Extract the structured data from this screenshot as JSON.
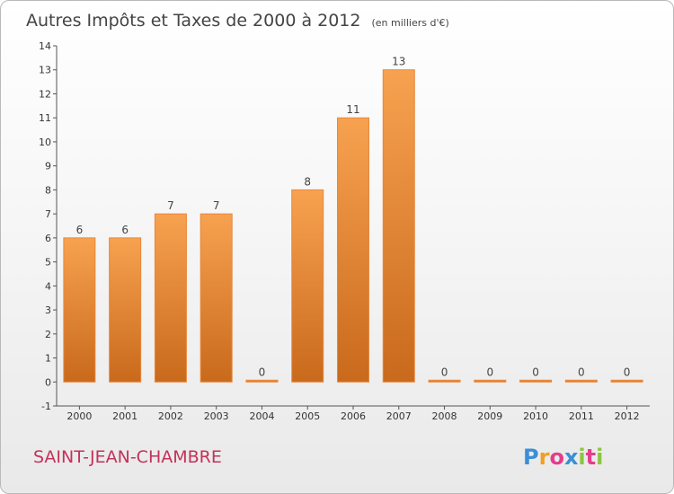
{
  "chart_data": {
    "type": "bar",
    "title": "Autres Impôts et Taxes de 2000 à 2012",
    "unit": "(en milliers d'€)",
    "categories": [
      "2000",
      "2001",
      "2002",
      "2003",
      "2004",
      "2005",
      "2006",
      "2007",
      "2008",
      "2009",
      "2010",
      "2011",
      "2012"
    ],
    "values": [
      6,
      6,
      7,
      7,
      0,
      8,
      11,
      13,
      0,
      0,
      0,
      0,
      0
    ],
    "ylim": [
      -1,
      14
    ],
    "yticks": [
      -1,
      0,
      1,
      2,
      3,
      4,
      5,
      6,
      7,
      8,
      9,
      10,
      11,
      12,
      13,
      14
    ],
    "grid": false,
    "bar_color": "#f0913a"
  },
  "footer": {
    "place": "SAINT-JEAN-CHAMBRE",
    "brand": "Proxiti",
    "brand_colors": [
      "#3a8fd6",
      "#f0a020",
      "#e43d8a",
      "#3a8fd6",
      "#8cc63f",
      "#e43d8a",
      "#8cc63f"
    ]
  }
}
